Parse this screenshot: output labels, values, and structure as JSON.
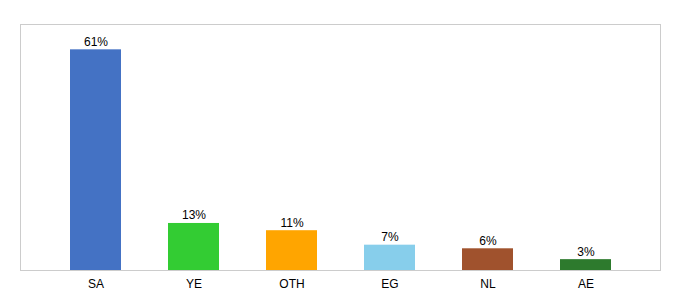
{
  "chart_data": {
    "type": "bar",
    "categories": [
      "SA",
      "YE",
      "OTH",
      "EG",
      "NL",
      "AE"
    ],
    "values": [
      61,
      13,
      11,
      7,
      6,
      3
    ],
    "value_labels": [
      "61%",
      "13%",
      "11%",
      "7%",
      "6%",
      "3%"
    ],
    "colors": [
      "#4472C4",
      "#33CC33",
      "#FFA500",
      "#87CEEB",
      "#A0522D",
      "#2D7A2D"
    ],
    "ylim": [
      0,
      68
    ],
    "data_labels": true,
    "tick_labels": "x"
  }
}
